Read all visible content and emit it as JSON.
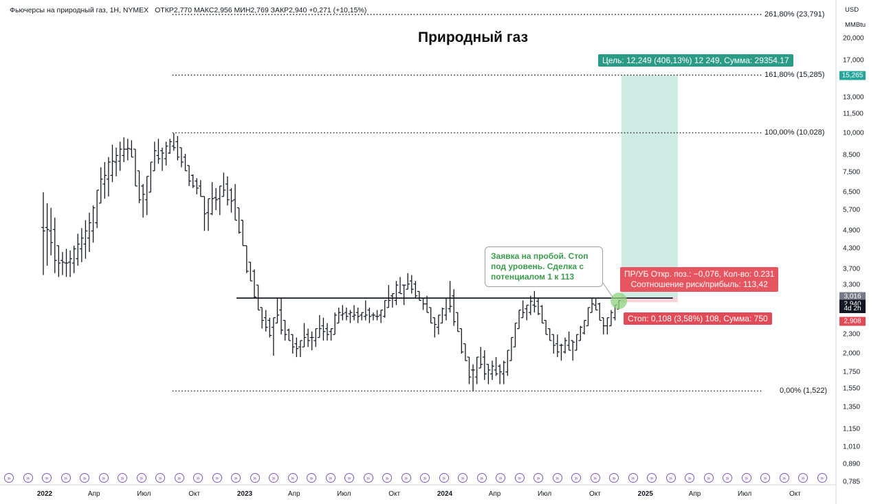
{
  "header": {
    "instrument": "Фьючерсы на природный газ, 1Н, NYMEX",
    "ohlc": "ОТКР2,770  МАКС2,956  МИН2,769  ЗАКР2,940  +0,271 (+10,15%)"
  },
  "chart_data": {
    "type": "candlestick",
    "title": "Природный газ",
    "currency": "USD",
    "unit": "MMBtu",
    "scale": "log",
    "y_ticks": [
      "20,000",
      "17,000",
      "15,000",
      "13,000",
      "11,500",
      "10,000",
      "8,500",
      "7,500",
      "6,500",
      "5,700",
      "4,900",
      "4,300",
      "3,700",
      "3,300",
      "2,300",
      "2,000",
      "1,750",
      "1,550",
      "1,350",
      "1,150",
      "1,010",
      "0,890",
      "0,785"
    ],
    "y_tick_values": [
      20.0,
      17.0,
      15.0,
      13.0,
      11.5,
      10.0,
      8.5,
      7.5,
      6.5,
      5.7,
      4.9,
      4.3,
      3.7,
      3.3,
      2.3,
      2.0,
      1.75,
      1.55,
      1.35,
      1.15,
      1.01,
      0.89,
      0.785
    ],
    "x_ticks": [
      {
        "label": "2022",
        "date": "2022-01",
        "year": true
      },
      {
        "label": "Апр",
        "date": "2022-04"
      },
      {
        "label": "Июл",
        "date": "2022-07"
      },
      {
        "label": "Окт",
        "date": "2022-10"
      },
      {
        "label": "2023",
        "date": "2023-01",
        "year": true
      },
      {
        "label": "Апр",
        "date": "2023-04"
      },
      {
        "label": "Июл",
        "date": "2023-07"
      },
      {
        "label": "Окт",
        "date": "2023-10"
      },
      {
        "label": "2024",
        "date": "2024-01",
        "year": true
      },
      {
        "label": "Апр",
        "date": "2024-04"
      },
      {
        "label": "Июл",
        "date": "2024-07"
      },
      {
        "label": "Окт",
        "date": "2024-10"
      },
      {
        "label": "2025",
        "date": "2025-01",
        "year": true
      },
      {
        "label": "Апр",
        "date": "2025-04"
      },
      {
        "label": "Июл",
        "date": "2025-07"
      },
      {
        "label": "Окт",
        "date": "2025-10"
      }
    ],
    "fib_levels": [
      {
        "label": "261,80% (23,791)",
        "value": 23.791
      },
      {
        "label": "161,80% (15,285)",
        "value": 15.285
      },
      {
        "label": "100,00% (10,028)",
        "value": 10.028
      },
      {
        "label": "0,00% (1,522)",
        "value": 1.522
      }
    ],
    "horizontal_level": 3.0,
    "price_tags": {
      "target": "15,265",
      "target_value": 15.265,
      "upper": "3,016",
      "upper_value": 3.016,
      "current": "2,940",
      "current_value": 2.94,
      "countdown": "4d 2h",
      "stop": "2,908",
      "stop_value": 2.908
    },
    "position": {
      "entry": 3.016,
      "target": 15.265,
      "stop": 2.908,
      "start_date": "2024-11",
      "end_date": "2025-03"
    },
    "weekly_prices": [
      {
        "date": "2021-12-27",
        "low": 3.55,
        "high": 6.5
      },
      {
        "date": "2022-01-03",
        "low": 3.8,
        "high": 6.0
      },
      {
        "date": "2022-01-10",
        "low": 4.1,
        "high": 5.8
      },
      {
        "date": "2022-01-17",
        "low": 3.6,
        "high": 5.4
      },
      {
        "date": "2022-01-24",
        "low": 3.5,
        "high": 4.4
      },
      {
        "date": "2022-01-31",
        "low": 3.55,
        "high": 4.2
      },
      {
        "date": "2022-02-07",
        "low": 3.5,
        "high": 4.3
      },
      {
        "date": "2022-02-14",
        "low": 3.5,
        "high": 4.25
      },
      {
        "date": "2022-02-21",
        "low": 3.6,
        "high": 4.4
      },
      {
        "date": "2022-02-28",
        "low": 3.8,
        "high": 4.8
      },
      {
        "date": "2022-03-07",
        "low": 3.9,
        "high": 5.0
      },
      {
        "date": "2022-03-14",
        "low": 4.0,
        "high": 5.3
      },
      {
        "date": "2022-03-21",
        "low": 4.2,
        "high": 5.6
      },
      {
        "date": "2022-03-28",
        "low": 4.5,
        "high": 5.9
      },
      {
        "date": "2022-04-04",
        "low": 5.0,
        "high": 6.6
      },
      {
        "date": "2022-04-11",
        "low": 6.0,
        "high": 7.8
      },
      {
        "date": "2022-04-18",
        "low": 6.2,
        "high": 8.1
      },
      {
        "date": "2022-04-25",
        "low": 6.3,
        "high": 8.4
      },
      {
        "date": "2022-05-02",
        "low": 7.0,
        "high": 9.2
      },
      {
        "date": "2022-05-09",
        "low": 7.3,
        "high": 9.0
      },
      {
        "date": "2022-05-16",
        "low": 7.6,
        "high": 9.4
      },
      {
        "date": "2022-05-23",
        "low": 8.1,
        "high": 9.7
      },
      {
        "date": "2022-05-30",
        "low": 8.2,
        "high": 9.6
      },
      {
        "date": "2022-06-06",
        "low": 8.4,
        "high": 9.5
      },
      {
        "date": "2022-06-13",
        "low": 6.8,
        "high": 8.9
      },
      {
        "date": "2022-06-20",
        "low": 6.0,
        "high": 7.6
      },
      {
        "date": "2022-06-27",
        "low": 5.4,
        "high": 6.9
      },
      {
        "date": "2022-07-04",
        "low": 5.5,
        "high": 7.3
      },
      {
        "date": "2022-07-11",
        "low": 6.5,
        "high": 8.1
      },
      {
        "date": "2022-07-18",
        "low": 7.6,
        "high": 9.4
      },
      {
        "date": "2022-07-25",
        "low": 8.0,
        "high": 9.6
      },
      {
        "date": "2022-08-01",
        "low": 7.6,
        "high": 9.0
      },
      {
        "date": "2022-08-08",
        "low": 7.9,
        "high": 9.4
      },
      {
        "date": "2022-08-15",
        "low": 8.6,
        "high": 9.6
      },
      {
        "date": "2022-08-22",
        "low": 8.8,
        "high": 10.0
      },
      {
        "date": "2022-08-29",
        "low": 8.2,
        "high": 9.8
      },
      {
        "date": "2022-09-05",
        "low": 7.8,
        "high": 9.0
      },
      {
        "date": "2022-09-12",
        "low": 7.6,
        "high": 8.6
      },
      {
        "date": "2022-09-19",
        "low": 6.8,
        "high": 7.9
      },
      {
        "date": "2022-09-26",
        "low": 6.7,
        "high": 7.4
      },
      {
        "date": "2022-10-03",
        "low": 6.4,
        "high": 7.2
      },
      {
        "date": "2022-10-10",
        "low": 6.3,
        "high": 7.1
      },
      {
        "date": "2022-10-17",
        "low": 4.9,
        "high": 6.3
      },
      {
        "date": "2022-10-24",
        "low": 4.9,
        "high": 6.2
      },
      {
        "date": "2022-10-31",
        "low": 5.5,
        "high": 7.0
      },
      {
        "date": "2022-11-07",
        "low": 5.7,
        "high": 6.7
      },
      {
        "date": "2022-11-14",
        "low": 5.5,
        "high": 6.8
      },
      {
        "date": "2022-11-21",
        "low": 6.3,
        "high": 7.5
      },
      {
        "date": "2022-11-28",
        "low": 5.9,
        "high": 7.3
      },
      {
        "date": "2022-12-05",
        "low": 5.6,
        "high": 6.7
      },
      {
        "date": "2022-12-12",
        "low": 5.3,
        "high": 6.9
      },
      {
        "date": "2022-12-19",
        "low": 4.8,
        "high": 5.8
      },
      {
        "date": "2022-12-26",
        "low": 4.4,
        "high": 5.3
      },
      {
        "date": "2023-01-02",
        "low": 3.6,
        "high": 4.4
      },
      {
        "date": "2023-01-09",
        "low": 3.4,
        "high": 3.9
      },
      {
        "date": "2023-01-16",
        "low": 3.0,
        "high": 3.7
      },
      {
        "date": "2023-01-23",
        "low": 2.75,
        "high": 3.3
      },
      {
        "date": "2023-01-30",
        "low": 2.4,
        "high": 2.8
      },
      {
        "date": "2023-02-06",
        "low": 2.35,
        "high": 2.75
      },
      {
        "date": "2023-02-13",
        "low": 2.25,
        "high": 2.6
      },
      {
        "date": "2023-02-20",
        "low": 1.97,
        "high": 2.6
      },
      {
        "date": "2023-02-27",
        "low": 2.5,
        "high": 3.0
      },
      {
        "date": "2023-03-06",
        "low": 2.3,
        "high": 3.0
      },
      {
        "date": "2023-03-13",
        "low": 2.2,
        "high": 2.55
      },
      {
        "date": "2023-03-20",
        "low": 2.2,
        "high": 2.4
      },
      {
        "date": "2023-03-27",
        "low": 2.0,
        "high": 2.3
      },
      {
        "date": "2023-04-03",
        "low": 1.95,
        "high": 2.25
      },
      {
        "date": "2023-04-10",
        "low": 1.95,
        "high": 2.2
      },
      {
        "date": "2023-04-17",
        "low": 2.1,
        "high": 2.5
      },
      {
        "date": "2023-04-24",
        "low": 2.1,
        "high": 2.4
      },
      {
        "date": "2023-05-01",
        "low": 2.05,
        "high": 2.35
      },
      {
        "date": "2023-05-08",
        "low": 2.1,
        "high": 2.4
      },
      {
        "date": "2023-05-15",
        "low": 2.25,
        "high": 2.65
      },
      {
        "date": "2023-05-22",
        "low": 2.2,
        "high": 2.6
      },
      {
        "date": "2023-05-29",
        "low": 2.2,
        "high": 2.5
      },
      {
        "date": "2023-06-05",
        "low": 2.2,
        "high": 2.4
      },
      {
        "date": "2023-06-12",
        "low": 2.3,
        "high": 2.7
      },
      {
        "date": "2023-06-19",
        "low": 2.5,
        "high": 2.8
      },
      {
        "date": "2023-06-26",
        "low": 2.55,
        "high": 2.85
      },
      {
        "date": "2023-07-03",
        "low": 2.55,
        "high": 2.8
      },
      {
        "date": "2023-07-10",
        "low": 2.5,
        "high": 2.75
      },
      {
        "date": "2023-07-17",
        "low": 2.55,
        "high": 2.85
      },
      {
        "date": "2023-07-24",
        "low": 2.5,
        "high": 2.8
      },
      {
        "date": "2023-07-31",
        "low": 2.55,
        "high": 2.7
      },
      {
        "date": "2023-08-07",
        "low": 2.55,
        "high": 2.95
      },
      {
        "date": "2023-08-14",
        "low": 2.5,
        "high": 2.8
      },
      {
        "date": "2023-08-21",
        "low": 2.55,
        "high": 2.7
      },
      {
        "date": "2023-08-28",
        "low": 2.55,
        "high": 2.75
      },
      {
        "date": "2023-09-04",
        "low": 2.5,
        "high": 2.75
      },
      {
        "date": "2023-09-11",
        "low": 2.6,
        "high": 2.95
      },
      {
        "date": "2023-09-18",
        "low": 2.8,
        "high": 3.3
      },
      {
        "date": "2023-09-25",
        "low": 2.8,
        "high": 3.1
      },
      {
        "date": "2023-10-02",
        "low": 2.85,
        "high": 3.4
      },
      {
        "date": "2023-10-09",
        "low": 3.1,
        "high": 3.5
      },
      {
        "date": "2023-10-16",
        "low": 2.85,
        "high": 3.3
      },
      {
        "date": "2023-10-23",
        "low": 3.2,
        "high": 3.6
      },
      {
        "date": "2023-10-30",
        "low": 3.1,
        "high": 3.55
      },
      {
        "date": "2023-11-06",
        "low": 3.0,
        "high": 3.4
      },
      {
        "date": "2023-11-13",
        "low": 2.95,
        "high": 3.15
      },
      {
        "date": "2023-11-20",
        "low": 2.75,
        "high": 3.0
      },
      {
        "date": "2023-11-27",
        "low": 2.7,
        "high": 3.05
      },
      {
        "date": "2023-12-04",
        "low": 2.5,
        "high": 2.8
      },
      {
        "date": "2023-12-11",
        "low": 2.25,
        "high": 2.6
      },
      {
        "date": "2023-12-18",
        "low": 2.3,
        "high": 2.65
      },
      {
        "date": "2023-12-25",
        "low": 2.5,
        "high": 2.8
      },
      {
        "date": "2024-01-01",
        "low": 2.55,
        "high": 3.0
      },
      {
        "date": "2024-01-08",
        "low": 2.7,
        "high": 3.4
      },
      {
        "date": "2024-01-15",
        "low": 2.45,
        "high": 3.2
      },
      {
        "date": "2024-01-22",
        "low": 2.35,
        "high": 2.7
      },
      {
        "date": "2024-01-29",
        "low": 2.0,
        "high": 2.4
      },
      {
        "date": "2024-02-05",
        "low": 1.9,
        "high": 2.15
      },
      {
        "date": "2024-02-12",
        "low": 1.6,
        "high": 1.95
      },
      {
        "date": "2024-02-19",
        "low": 1.522,
        "high": 1.85
      },
      {
        "date": "2024-02-26",
        "low": 1.6,
        "high": 1.95
      },
      {
        "date": "2024-03-04",
        "low": 1.8,
        "high": 2.1
      },
      {
        "date": "2024-03-11",
        "low": 1.65,
        "high": 2.05
      },
      {
        "date": "2024-03-18",
        "low": 1.6,
        "high": 1.85
      },
      {
        "date": "2024-03-25",
        "low": 1.65,
        "high": 1.9
      },
      {
        "date": "2024-04-01",
        "low": 1.7,
        "high": 1.95
      },
      {
        "date": "2024-04-08",
        "low": 1.6,
        "high": 1.85
      },
      {
        "date": "2024-04-15",
        "low": 1.6,
        "high": 1.9
      },
      {
        "date": "2024-04-22",
        "low": 1.7,
        "high": 2.05
      },
      {
        "date": "2024-04-29",
        "low": 1.9,
        "high": 2.25
      },
      {
        "date": "2024-05-06",
        "low": 2.1,
        "high": 2.5
      },
      {
        "date": "2024-05-13",
        "low": 2.4,
        "high": 2.75
      },
      {
        "date": "2024-05-20",
        "low": 2.6,
        "high": 2.95
      },
      {
        "date": "2024-05-27",
        "low": 2.55,
        "high": 2.85
      },
      {
        "date": "2024-06-03",
        "low": 2.65,
        "high": 3.05
      },
      {
        "date": "2024-06-10",
        "low": 2.7,
        "high": 3.16
      },
      {
        "date": "2024-06-17",
        "low": 2.65,
        "high": 3.0
      },
      {
        "date": "2024-06-24",
        "low": 2.5,
        "high": 2.85
      },
      {
        "date": "2024-07-01",
        "low": 2.3,
        "high": 2.55
      },
      {
        "date": "2024-07-08",
        "low": 2.2,
        "high": 2.4
      },
      {
        "date": "2024-07-15",
        "low": 2.0,
        "high": 2.3
      },
      {
        "date": "2024-07-22",
        "low": 1.95,
        "high": 2.3
      },
      {
        "date": "2024-07-29",
        "low": 1.9,
        "high": 2.15
      },
      {
        "date": "2024-08-05",
        "low": 2.0,
        "high": 2.25
      },
      {
        "date": "2024-08-12",
        "low": 2.05,
        "high": 2.35
      },
      {
        "date": "2024-08-19",
        "low": 1.9,
        "high": 2.2
      },
      {
        "date": "2024-08-26",
        "low": 2.05,
        "high": 2.3
      },
      {
        "date": "2024-09-02",
        "low": 2.2,
        "high": 2.45
      },
      {
        "date": "2024-09-09",
        "low": 2.3,
        "high": 2.55
      },
      {
        "date": "2024-09-16",
        "low": 2.45,
        "high": 2.8
      },
      {
        "date": "2024-09-23",
        "low": 2.7,
        "high": 3.0
      },
      {
        "date": "2024-09-30",
        "low": 2.75,
        "high": 3.0
      },
      {
        "date": "2024-10-07",
        "low": 2.55,
        "high": 2.9
      },
      {
        "date": "2024-10-14",
        "low": 2.3,
        "high": 2.6
      },
      {
        "date": "2024-10-21",
        "low": 2.3,
        "high": 2.6
      },
      {
        "date": "2024-10-28",
        "low": 2.45,
        "high": 2.75
      },
      {
        "date": "2024-11-04",
        "low": 2.55,
        "high": 2.85
      },
      {
        "date": "2024-11-11",
        "low": 2.769,
        "high": 2.956
      }
    ]
  },
  "annotations": {
    "target_label": "Цель: 12,249 (406,13%) 12 249, Сумма: 29354.17",
    "rr_line1": "ПР/УБ Откр. поз.: −0,076, Кол-во: 0.231",
    "rr_line2": "Соотношение риск/прибыль: 113,42",
    "stop_label": "Стоп: 0,108 (3,58%) 108, Сумма: 750",
    "callout_line1": "Заявка на пробой. Стоп",
    "callout_line2": "под уровень. Сделка с",
    "callout_line3": "потенциалом 1 к 113"
  },
  "colors": {
    "bars": "#131722",
    "profit_zone": "#cfeae3",
    "loss_zone": "#f8d5d8",
    "target_tag": "#2a9b86",
    "stop_tag": "#e04b57",
    "highlight_circle": "#8bd17c",
    "callout_text": "#3a9b4b",
    "replay_icon": "#7e57c2"
  }
}
